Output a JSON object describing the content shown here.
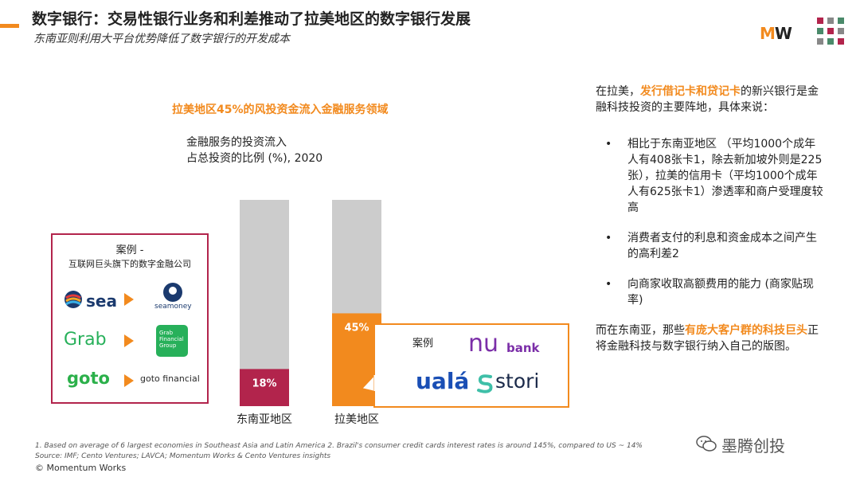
{
  "header": {
    "title": "数字银行：交易性银行业务和利差推动了拉美地区的数字银行发展",
    "subtitle": "东南亚则利用大平台优势降低了数字银行的开发成本",
    "logo_m": "M",
    "logo_w": "W"
  },
  "colors": {
    "accent": "#f28a1e",
    "sea_bar": "#b2244c",
    "bar_background": "#cccccc",
    "lam_bar": "#f28a1e"
  },
  "chart_data": {
    "type": "bar",
    "title": "拉美地区45%的风投资金流入金融服务领域",
    "subtitle_lines": [
      "金融服务的投资流入",
      "占总投资的比例 (%), 2020"
    ],
    "categories": [
      "东南亚地区",
      "拉美地区"
    ],
    "values": [
      18,
      45
    ],
    "data_labels": [
      "18%",
      "45%"
    ],
    "ylim": [
      0,
      100
    ],
    "grid": false,
    "legend": "none"
  },
  "sea_case": {
    "title": "案例 -",
    "subtitle": "互联网巨头旗下的数字金融公司",
    "logos": {
      "sea": "sea",
      "seamoney": "seamoney",
      "grab": "Grab",
      "grab_financial": [
        "Grab",
        "Financial",
        "Group"
      ],
      "goto": "goto",
      "goto_financial": "goto financial"
    }
  },
  "lam_case": {
    "label": "案例",
    "nu": "nu",
    "bank": "bank",
    "uala": "ualá",
    "stori": "stori"
  },
  "right_panel": {
    "intro_pre": "在拉美，",
    "intro_highlight": "发行借记卡和贷记卡",
    "intro_post": "的新兴银行是金融科技投资的主要阵地，具体来说：",
    "bullets": [
      "相比于东南亚地区 （平均1000个成年人有408张卡1，除去新加坡外则是225张），拉美的信用卡（平均1000个成年人有625张卡1）渗透率和商户受理度较高",
      "消费者支付的利息和资金成本之间产生的高利差2",
      "向商家收取高额费用的能力 (商家贴现率)"
    ],
    "outro_pre": "而在东南亚，那些",
    "outro_highlight": "有庞大客户群的科技巨头",
    "outro_post": "正将金融科技与数字银行纳入自己的版图。"
  },
  "footer": {
    "footnote": "1. Based on average of 6 largest economies in Southeast Asia and Latin America    2. Brazil's consumer credit cards interest rates is around 145%, compared to US ~ 14%",
    "source": "Source: IMF; Cento Ventures; LAVCA; Momentum Works & Cento Ventures insights",
    "copyright": "© Momentum Works",
    "watermark": "墨腾创投"
  }
}
